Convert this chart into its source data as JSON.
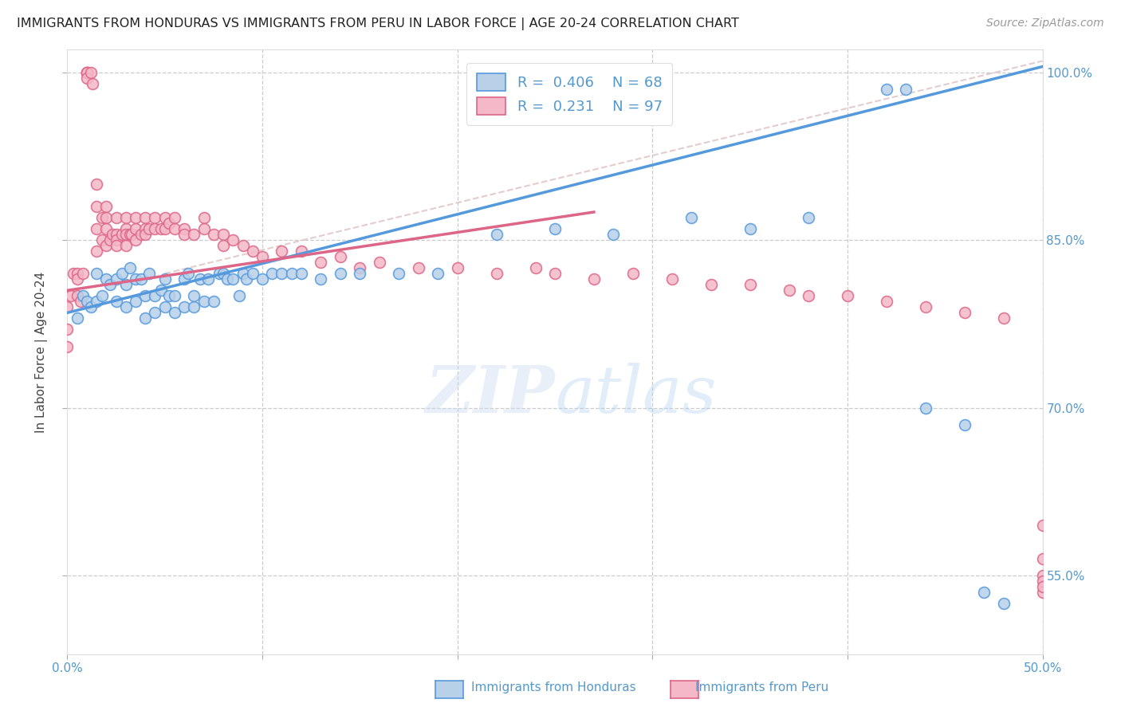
{
  "title": "IMMIGRANTS FROM HONDURAS VS IMMIGRANTS FROM PERU IN LABOR FORCE | AGE 20-24 CORRELATION CHART",
  "source": "Source: ZipAtlas.com",
  "ylabel": "In Labor Force | Age 20-24",
  "xlim": [
    0.0,
    0.5
  ],
  "ylim": [
    0.48,
    1.02
  ],
  "color_honduras": "#b8d0e8",
  "color_peru": "#f4b8c8",
  "color_line_honduras": "#5599dd",
  "color_line_peru": "#dd6688",
  "color_trendline_dashed": "#ddc0c0",
  "honduras_scatter_x": [
    0.005,
    0.008,
    0.01,
    0.012,
    0.015,
    0.015,
    0.018,
    0.02,
    0.022,
    0.025,
    0.025,
    0.028,
    0.03,
    0.03,
    0.032,
    0.035,
    0.035,
    0.038,
    0.04,
    0.04,
    0.042,
    0.045,
    0.045,
    0.048,
    0.05,
    0.05,
    0.052,
    0.055,
    0.055,
    0.06,
    0.06,
    0.062,
    0.065,
    0.065,
    0.068,
    0.07,
    0.072,
    0.075,
    0.078,
    0.08,
    0.082,
    0.085,
    0.088,
    0.09,
    0.092,
    0.095,
    0.1,
    0.105,
    0.11,
    0.115,
    0.12,
    0.13,
    0.14,
    0.15,
    0.17,
    0.19,
    0.22,
    0.25,
    0.28,
    0.32,
    0.35,
    0.38,
    0.42,
    0.43,
    0.44,
    0.46,
    0.47,
    0.48
  ],
  "honduras_scatter_y": [
    0.78,
    0.8,
    0.795,
    0.79,
    0.82,
    0.795,
    0.8,
    0.815,
    0.81,
    0.795,
    0.815,
    0.82,
    0.79,
    0.81,
    0.825,
    0.795,
    0.815,
    0.815,
    0.78,
    0.8,
    0.82,
    0.785,
    0.8,
    0.805,
    0.79,
    0.815,
    0.8,
    0.785,
    0.8,
    0.79,
    0.815,
    0.82,
    0.79,
    0.8,
    0.815,
    0.795,
    0.815,
    0.795,
    0.82,
    0.82,
    0.815,
    0.815,
    0.8,
    0.82,
    0.815,
    0.82,
    0.815,
    0.82,
    0.82,
    0.82,
    0.82,
    0.815,
    0.82,
    0.82,
    0.82,
    0.82,
    0.855,
    0.86,
    0.855,
    0.87,
    0.86,
    0.87,
    0.985,
    0.985,
    0.7,
    0.685,
    0.535,
    0.525
  ],
  "peru_scatter_x": [
    0.0,
    0.0,
    0.0,
    0.002,
    0.003,
    0.005,
    0.005,
    0.005,
    0.007,
    0.008,
    0.01,
    0.01,
    0.01,
    0.01,
    0.01,
    0.012,
    0.013,
    0.015,
    0.015,
    0.015,
    0.015,
    0.018,
    0.018,
    0.02,
    0.02,
    0.02,
    0.02,
    0.022,
    0.023,
    0.025,
    0.025,
    0.025,
    0.025,
    0.028,
    0.03,
    0.03,
    0.03,
    0.03,
    0.032,
    0.033,
    0.035,
    0.035,
    0.035,
    0.038,
    0.04,
    0.04,
    0.04,
    0.042,
    0.045,
    0.045,
    0.048,
    0.05,
    0.05,
    0.052,
    0.055,
    0.055,
    0.06,
    0.06,
    0.065,
    0.07,
    0.07,
    0.075,
    0.08,
    0.08,
    0.085,
    0.09,
    0.095,
    0.1,
    0.11,
    0.12,
    0.13,
    0.14,
    0.15,
    0.16,
    0.18,
    0.2,
    0.22,
    0.24,
    0.25,
    0.27,
    0.29,
    0.31,
    0.33,
    0.35,
    0.37,
    0.38,
    0.4,
    0.42,
    0.44,
    0.46,
    0.48,
    0.5,
    0.5,
    0.5,
    0.5,
    0.5,
    0.5
  ],
  "peru_scatter_y": [
    0.755,
    0.77,
    0.79,
    0.8,
    0.82,
    0.8,
    0.82,
    0.815,
    0.795,
    0.82,
    1.0,
    1.0,
    1.0,
    1.0,
    0.995,
    1.0,
    0.99,
    0.9,
    0.88,
    0.86,
    0.84,
    0.87,
    0.85,
    0.88,
    0.87,
    0.86,
    0.845,
    0.85,
    0.855,
    0.855,
    0.87,
    0.85,
    0.845,
    0.855,
    0.87,
    0.86,
    0.855,
    0.845,
    0.855,
    0.855,
    0.87,
    0.86,
    0.85,
    0.855,
    0.87,
    0.86,
    0.855,
    0.86,
    0.87,
    0.86,
    0.86,
    0.87,
    0.86,
    0.865,
    0.87,
    0.86,
    0.86,
    0.855,
    0.855,
    0.87,
    0.86,
    0.855,
    0.855,
    0.845,
    0.85,
    0.845,
    0.84,
    0.835,
    0.84,
    0.84,
    0.83,
    0.835,
    0.825,
    0.83,
    0.825,
    0.825,
    0.82,
    0.825,
    0.82,
    0.815,
    0.82,
    0.815,
    0.81,
    0.81,
    0.805,
    0.8,
    0.8,
    0.795,
    0.79,
    0.785,
    0.78,
    0.595,
    0.535,
    0.565,
    0.55,
    0.545,
    0.54
  ]
}
